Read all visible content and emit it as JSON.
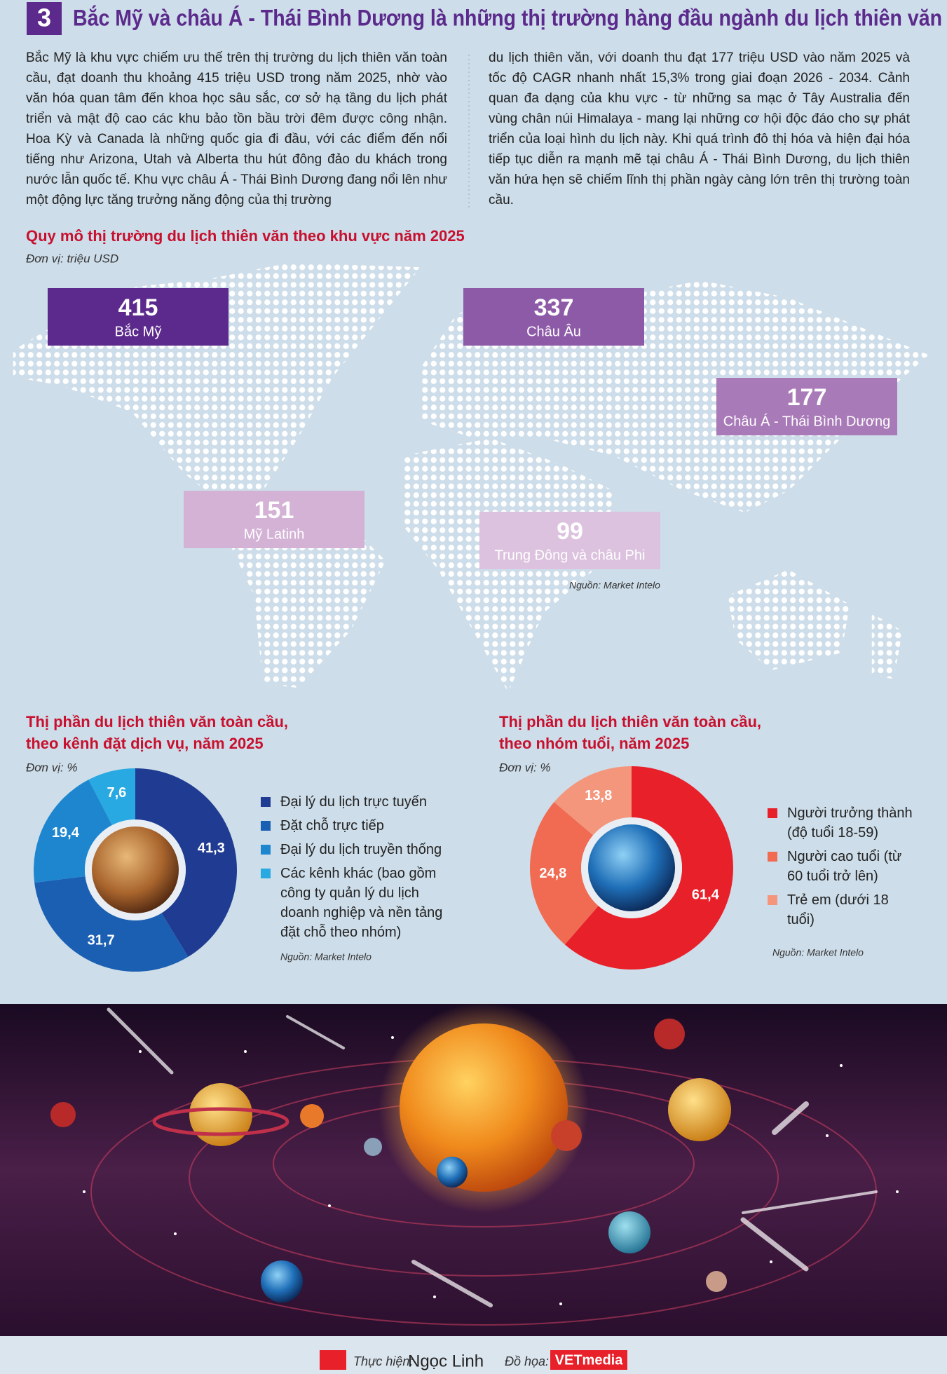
{
  "header": {
    "number": "3",
    "title": "Bắc Mỹ và châu Á - Thái Bình Dương là những thị trường hàng đầu ngành du lịch thiên văn"
  },
  "intro": {
    "columns": [
      "Bắc Mỹ là khu vực chiếm ưu thế trên thị trường du lịch thiên văn toàn cầu, đạt doanh thu khoảng 415 triệu USD trong năm 2025, nhờ vào văn hóa quan tâm đến khoa học sâu sắc, cơ sở hạ tầng du lịch phát triển và mật độ cao các khu bảo tồn bầu trời đêm được công nhận. Hoa Kỳ và Canada là những quốc gia đi đầu, với các điểm đến nổi tiếng như Arizona, Utah và Alberta thu hút đông đảo du khách trong nước lẫn quốc tế. Khu vực châu Á - Thái Bình Dương đang nổi lên như một động lực tăng trưởng năng động của thị trường",
      "du lịch thiên văn, với doanh thu đạt 177 triệu USD vào năm 2025 và tốc độ CAGR nhanh nhất 15,3% trong giai đoạn 2026 - 2034. Cảnh quan đa dạng của khu vực - từ những sa mạc ở Tây Australia đến vùng chân núi Himalaya - mang lại những cơ hội độc đáo cho sự phát triển của loại hình du lịch này. Khi quá trình đô thị hóa và hiện đại hóa tiếp tục diễn ra mạnh mẽ tại châu Á - Thái Bình Dương, du lịch thiên văn hứa hẹn sẽ chiếm lĩnh thị phần ngày càng lớn trên thị trường toàn cầu."
    ]
  },
  "chart_data": [
    {
      "type": "map",
      "title": "Quy mô thị trường du lịch thiên văn theo khu vực năm 2025",
      "unit": "Đơn vị: triệu USD",
      "categories": [
        "Bắc Mỹ",
        "Châu Âu",
        "Châu Á - Thái Bình Dương",
        "Mỹ Latinh",
        "Trung Đông và châu Phi"
      ],
      "values": [
        415,
        337,
        177,
        151,
        99
      ],
      "colors": [
        "#5c2a8c",
        "#8d5aa8",
        "#a97ab8",
        "#d3b2d6",
        "#dcc2de"
      ],
      "source": "Nguồn: Market Intelo"
    },
    {
      "type": "donut",
      "title": [
        "Thị phần du lịch thiên văn toàn cầu,",
        "theo kênh đặt dịch vụ, năm 2025"
      ],
      "unit": "Đơn vị: %",
      "categories": [
        "Đại lý du lịch trực tuyến",
        "Đặt chỗ trực tiếp",
        "Đại lý du lịch truyền thống",
        "Các kênh khác (bao gồm công ty quản lý du lịch doanh nghiệp và nền tảng đặt chỗ theo nhóm)"
      ],
      "values": [
        41.3,
        31.7,
        19.4,
        7.6
      ],
      "value_labels": [
        "41,3",
        "31,7",
        "19,4",
        "7,6"
      ],
      "colors": [
        "#203c92",
        "#1b5fb3",
        "#1d86cf",
        "#28a9e2"
      ],
      "source": "Nguồn: Market Intelo"
    },
    {
      "type": "donut",
      "title": [
        "Thị phần du lịch thiên văn toàn cầu,",
        "theo nhóm tuổi, năm 2025"
      ],
      "unit": "Đơn vị: %",
      "categories": [
        "Người trưởng thành (độ tuổi 18-59)",
        "Người cao tuổi (từ 60 tuổi trở lên)",
        "Trẻ em (dưới 18 tuổi)"
      ],
      "values": [
        61.4,
        24.8,
        13.8
      ],
      "value_labels": [
        "61,4",
        "24,8",
        "13,8"
      ],
      "colors": [
        "#e8202a",
        "#f06b52",
        "#f4967c"
      ],
      "source": "Nguồn: Market Intelo"
    }
  ],
  "footer": {
    "made_by_label": "Thực hiện:",
    "made_by": "Ngọc Linh",
    "graphics_label": "Đồ họa:",
    "graphics": "VETmedia"
  }
}
